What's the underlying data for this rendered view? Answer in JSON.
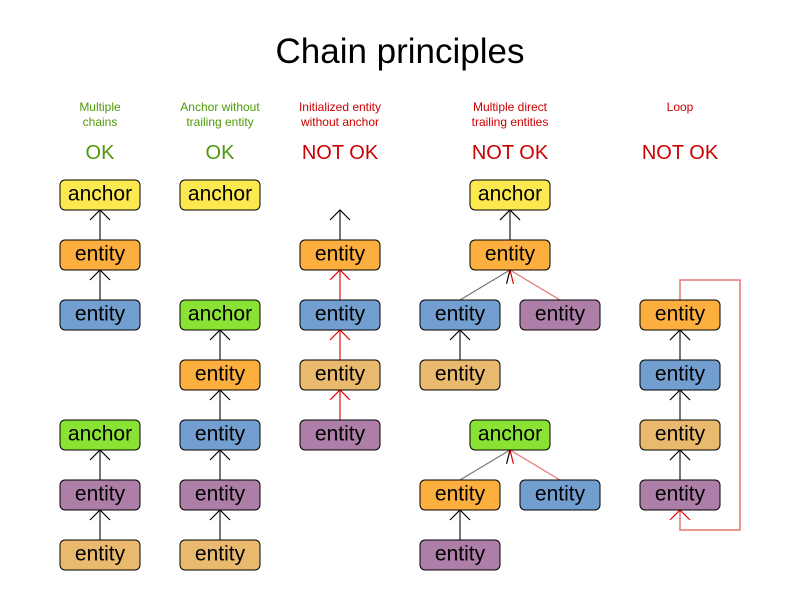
{
  "title": "Chain principles",
  "colors": {
    "ok": "#4e9a06",
    "not_ok": "#cc0000",
    "anchor_yellow": "#fce94f",
    "anchor_green": "#8ae234",
    "entity_orange": "#fcaf3e",
    "entity_blue": "#729fcf",
    "entity_purple": "#ad7fa8",
    "entity_tan": "#e9b96e",
    "edge_ok": "#777777",
    "edge_bad": "#e57373"
  },
  "columns": [
    {
      "caption_line1": "Multiple",
      "caption_line2": "chains",
      "verdict": "OK",
      "status": "ok"
    },
    {
      "caption_line1": "Anchor without",
      "caption_line2": "trailing entity",
      "verdict": "OK",
      "status": "ok"
    },
    {
      "caption_line1": "Initialized entity",
      "caption_line2": "without anchor",
      "verdict": "NOT OK",
      "status": "not_ok"
    },
    {
      "caption_line1": "Multiple direct",
      "caption_line2": "trailing entities",
      "verdict": "NOT OK",
      "status": "not_ok"
    },
    {
      "caption_line1": "Loop",
      "caption_line2": "",
      "verdict": "NOT OK",
      "status": "not_ok"
    }
  ],
  "nodes": [
    {
      "label": "anchor",
      "color": "anchor_yellow"
    },
    {
      "label": "entity",
      "color": "entity_orange"
    },
    {
      "label": "entity",
      "color": "entity_blue"
    },
    {
      "label": "anchor",
      "color": "anchor_green"
    },
    {
      "label": "entity",
      "color": "entity_purple"
    },
    {
      "label": "entity",
      "color": "entity_tan"
    },
    {
      "label": "anchor",
      "color": "anchor_yellow"
    },
    {
      "label": "anchor",
      "color": "anchor_green"
    },
    {
      "label": "entity",
      "color": "entity_orange"
    },
    {
      "label": "entity",
      "color": "entity_blue"
    },
    {
      "label": "entity",
      "color": "entity_purple"
    },
    {
      "label": "entity",
      "color": "entity_tan"
    },
    {
      "label": "entity",
      "color": "entity_orange"
    },
    {
      "label": "entity",
      "color": "entity_blue"
    },
    {
      "label": "entity",
      "color": "entity_tan"
    },
    {
      "label": "entity",
      "color": "entity_purple"
    },
    {
      "label": "anchor",
      "color": "anchor_yellow"
    },
    {
      "label": "entity",
      "color": "entity_orange"
    },
    {
      "label": "entity",
      "color": "entity_blue"
    },
    {
      "label": "entity",
      "color": "entity_purple"
    },
    {
      "label": "entity",
      "color": "entity_tan"
    },
    {
      "label": "anchor",
      "color": "anchor_green"
    },
    {
      "label": "entity",
      "color": "entity_orange"
    },
    {
      "label": "entity",
      "color": "entity_blue"
    },
    {
      "label": "entity",
      "color": "entity_purple"
    },
    {
      "label": "entity",
      "color": "entity_orange"
    },
    {
      "label": "entity",
      "color": "entity_blue"
    },
    {
      "label": "entity",
      "color": "entity_tan"
    },
    {
      "label": "entity",
      "color": "entity_purple"
    }
  ],
  "edges": [
    {
      "from": 1,
      "to": 0,
      "valid": true
    },
    {
      "from": 2,
      "to": 1,
      "valid": true
    },
    {
      "from": 4,
      "to": 3,
      "valid": true
    },
    {
      "from": 5,
      "to": 4,
      "valid": true
    },
    {
      "from": 8,
      "to": 7,
      "valid": true
    },
    {
      "from": 9,
      "to": 8,
      "valid": true
    },
    {
      "from": 10,
      "to": 9,
      "valid": true
    },
    {
      "from": 11,
      "to": 10,
      "valid": true
    },
    {
      "from": 12,
      "to": null,
      "valid": true
    },
    {
      "from": 13,
      "to": 12,
      "valid": false
    },
    {
      "from": 14,
      "to": 13,
      "valid": false
    },
    {
      "from": 15,
      "to": 14,
      "valid": false
    },
    {
      "from": 17,
      "to": 16,
      "valid": true
    },
    {
      "from": 18,
      "to": 17,
      "valid": true
    },
    {
      "from": 19,
      "to": 17,
      "valid": false
    },
    {
      "from": 20,
      "to": 18,
      "valid": true
    },
    {
      "from": 22,
      "to": 21,
      "valid": true
    },
    {
      "from": 23,
      "to": 21,
      "valid": false
    },
    {
      "from": 24,
      "to": 22,
      "valid": true
    },
    {
      "from": 26,
      "to": 25,
      "valid": true
    },
    {
      "from": 27,
      "to": 26,
      "valid": true
    },
    {
      "from": 28,
      "to": 27,
      "valid": true
    },
    {
      "from": 25,
      "to": 28,
      "valid": false,
      "loop": true
    }
  ]
}
